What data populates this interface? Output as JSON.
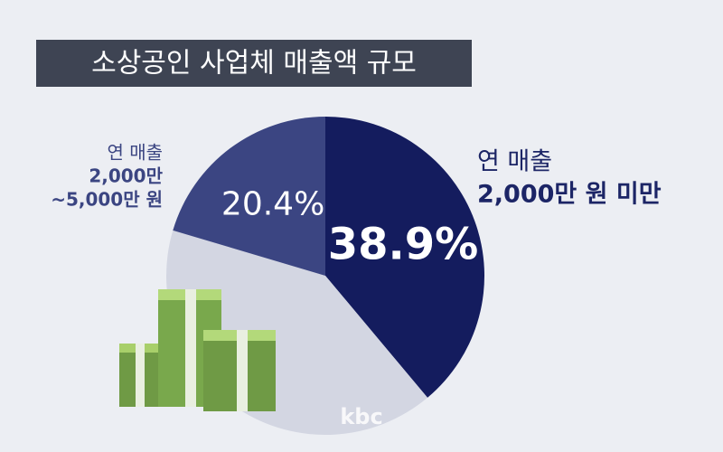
{
  "chart_data": {
    "type": "pie",
    "title": "소상공인 사업체 매출액 규모",
    "categories": [
      [
        "연 매출",
        "2,000만 원 미만"
      ],
      null,
      [
        "연 매출",
        "2,000만",
        "~5,000만 원"
      ]
    ],
    "values": [
      38.9,
      40.7,
      20.4
    ],
    "value_labels": [
      "38.9%",
      null,
      "20.4%"
    ],
    "colors": [
      "#141c5e",
      "#d3d6e2",
      "#3b4582"
    ],
    "start_angle": 0,
    "direction": "clockwise",
    "watermark": "kbc"
  }
}
